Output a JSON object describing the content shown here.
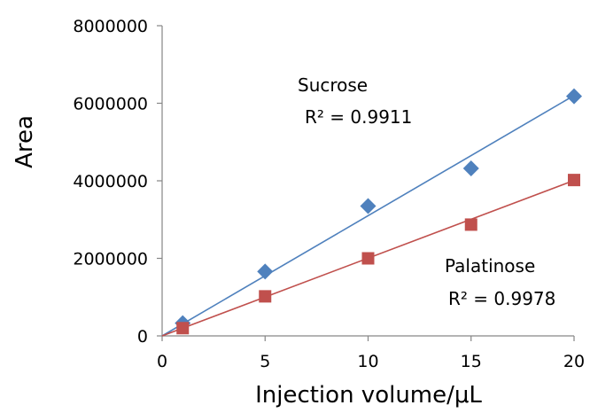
{
  "chart_data": {
    "type": "scatter",
    "xlabel": "Injection volume/μL",
    "ylabel": "Area",
    "xlim": [
      0,
      20
    ],
    "ylim": [
      0,
      8000000
    ],
    "x_ticks": [
      "0",
      "5",
      "10",
      "15",
      "20"
    ],
    "y_ticks": [
      "0",
      "2000000",
      "4000000",
      "6000000",
      "8000000"
    ],
    "grid": false,
    "legend": "none",
    "series": [
      {
        "name": "Sucrose",
        "marker": "diamond",
        "color": "#4F81BD",
        "x": [
          1,
          5,
          10,
          15,
          20
        ],
        "y": [
          330000,
          1660000,
          3350000,
          4320000,
          6180000
        ],
        "trendline": {
          "from": [
            0,
            0
          ],
          "to": [
            20,
            6200000
          ]
        },
        "r2_label": "R² = 0.9911"
      },
      {
        "name": "Palatinose",
        "marker": "square",
        "color": "#C0504D",
        "x": [
          1,
          5,
          10,
          15,
          20
        ],
        "y": [
          200000,
          1020000,
          2000000,
          2870000,
          4020000
        ],
        "trendline": {
          "from": [
            0,
            0
          ],
          "to": [
            20,
            4010000
          ]
        },
        "r2_label": "R² = 0.9978"
      }
    ]
  }
}
